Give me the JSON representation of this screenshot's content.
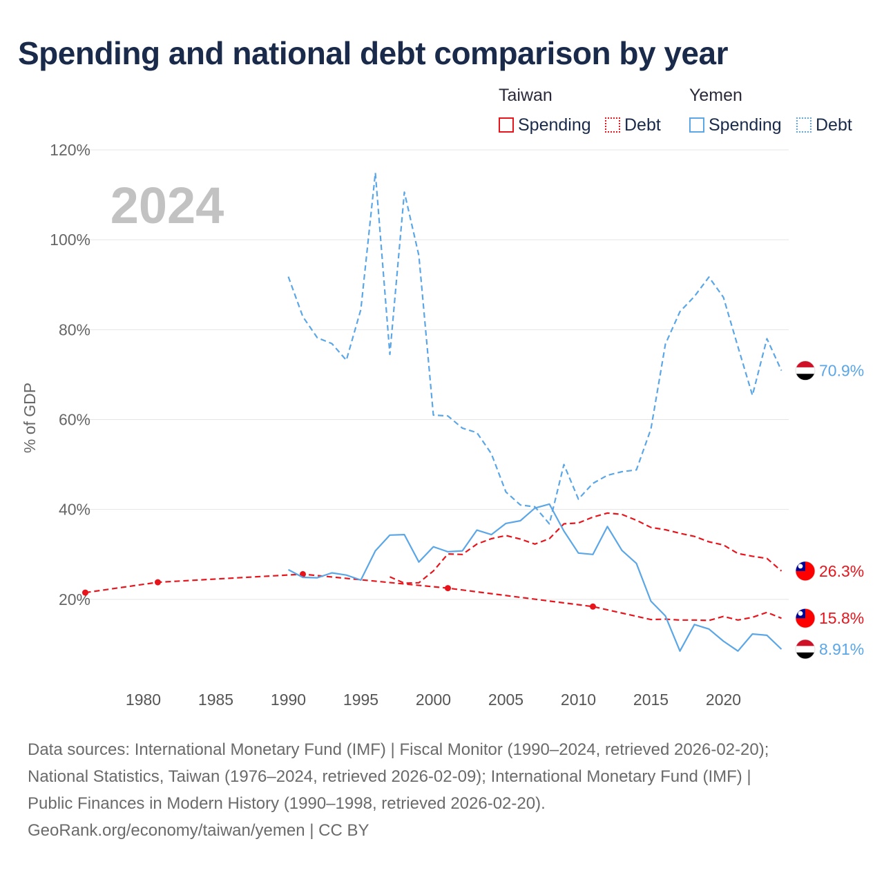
{
  "title": "Spending and national debt comparison by year",
  "legend": {
    "groups": [
      {
        "country": "Taiwan",
        "color": "#e8141c",
        "items": [
          "Spending",
          "Debt"
        ]
      },
      {
        "country": "Yemen",
        "color": "#5aa6e6",
        "items": [
          "Spending",
          "Debt"
        ]
      }
    ]
  },
  "chart_data": {
    "type": "line",
    "title": "Spending and national debt comparison by year",
    "ylabel": "% of GDP",
    "xlabel": "",
    "year_label": "2024",
    "xlim": [
      1975.5,
      2024.5
    ],
    "ylim": [
      2,
      122
    ],
    "x_ticks": [
      1980,
      1985,
      1990,
      1995,
      2000,
      2005,
      2010,
      2015,
      2020
    ],
    "y_ticks": [
      20,
      40,
      60,
      80,
      100,
      120
    ],
    "y_tick_labels": [
      "20%",
      "40%",
      "60%",
      "80%",
      "100%",
      "120%"
    ],
    "series": [
      {
        "name": "Taiwan Debt (National Statistics, interpolated)",
        "country": "Taiwan",
        "metric": "Debt",
        "color": "#e8141c",
        "style": "dashed",
        "x": [
          1976,
          1981,
          1991,
          2001,
          2011,
          2015,
          2016,
          2017,
          2018,
          2019,
          2020,
          2021,
          2022,
          2023,
          2024
        ],
        "y": [
          21.5,
          23.8,
          25.6,
          22.5,
          18.4,
          15.5,
          15.6,
          15.4,
          15.4,
          15.3,
          16.2,
          15.4,
          16.0,
          17.1,
          15.8
        ],
        "markers": [
          1976,
          1981,
          1991,
          2001,
          2011
        ]
      },
      {
        "name": "Taiwan Spending",
        "country": "Taiwan",
        "metric": "Spending",
        "color": "#e8141c",
        "style": "dashed",
        "x": [
          1997,
          1998,
          1999,
          2000,
          2001,
          2002,
          2003,
          2004,
          2005,
          2006,
          2007,
          2008,
          2009,
          2010,
          2011,
          2012,
          2013,
          2014,
          2015,
          2016,
          2017,
          2018,
          2019,
          2020,
          2021,
          2022,
          2023,
          2024
        ],
        "y": [
          25.0,
          23.6,
          23.7,
          26.3,
          30.1,
          30.0,
          32.3,
          33.5,
          34.2,
          33.4,
          32.3,
          33.5,
          36.8,
          37.0,
          38.3,
          39.2,
          38.9,
          37.6,
          36.0,
          35.5,
          34.7,
          34.0,
          32.8,
          32.1,
          30.2,
          29.6,
          29.1,
          26.3
        ]
      },
      {
        "name": "Yemen Debt",
        "country": "Yemen",
        "metric": "Debt",
        "color": "#5aa6e6",
        "style": "dashed",
        "x": [
          1990,
          1991,
          1992,
          1993,
          1994,
          1995,
          1996,
          1997,
          1998,
          1999,
          2000,
          2001,
          2002,
          2003,
          2004,
          2005,
          2006,
          2007,
          2008,
          2009,
          2010,
          2011,
          2012,
          2013,
          2014,
          2015,
          2016,
          2017,
          2018,
          2019,
          2020,
          2021,
          2022,
          2023,
          2024
        ],
        "y": [
          91.8,
          82.9,
          78.2,
          76.9,
          73.2,
          84.5,
          114.9,
          74.5,
          110.6,
          96.5,
          61.0,
          60.8,
          58.1,
          57.1,
          52.4,
          43.9,
          41.0,
          40.6,
          36.8,
          50.0,
          42.3,
          45.8,
          47.6,
          48.4,
          48.8,
          57.9,
          76.8,
          84.0,
          87.4,
          91.7,
          87.2,
          76.2,
          65.4,
          78.0,
          70.9
        ]
      },
      {
        "name": "Yemen Spending",
        "country": "Yemen",
        "metric": "Spending",
        "color": "#5aa6e6",
        "style": "solid",
        "x": [
          1990,
          1991,
          1992,
          1993,
          1994,
          1995,
          1996,
          1997,
          1998,
          1999,
          2000,
          2001,
          2002,
          2003,
          2004,
          2005,
          2006,
          2007,
          2008,
          2009,
          2010,
          2011,
          2012,
          2013,
          2014,
          2015,
          2016,
          2017,
          2018,
          2019,
          2020,
          2021,
          2022,
          2023,
          2024
        ],
        "y": [
          26.6,
          24.9,
          24.8,
          25.9,
          25.4,
          24.3,
          30.8,
          34.3,
          34.4,
          28.3,
          31.7,
          30.6,
          30.8,
          35.4,
          34.4,
          36.9,
          37.5,
          40.3,
          41.2,
          35.2,
          30.3,
          30.0,
          36.2,
          30.9,
          28.0,
          19.6,
          16.3,
          8.5,
          14.4,
          13.4,
          10.7,
          8.5,
          12.3,
          12.0,
          8.91
        ]
      }
    ],
    "end_labels": [
      {
        "country": "Yemen",
        "metric": "Debt",
        "value": 70.9,
        "text": "70.9%",
        "color": "#5aa6e6",
        "flag": "yemen-flag"
      },
      {
        "country": "Taiwan",
        "metric": "Spending",
        "value": 26.3,
        "text": "26.3%",
        "color": "#e8141c",
        "flag": "taiwan-flag"
      },
      {
        "country": "Taiwan",
        "metric": "Debt",
        "value": 15.8,
        "text": "15.8%",
        "color": "#e8141c",
        "flag": "taiwan-flag"
      },
      {
        "country": "Yemen",
        "metric": "Spending",
        "value": 8.91,
        "text": "8.91%",
        "color": "#5aa6e6",
        "flag": "yemen-flag"
      }
    ]
  },
  "footer": {
    "lines": [
      "Data sources: International Monetary Fund (IMF) | Fiscal Monitor (1990–2024, retrieved 2026-02-20);",
      "National Statistics, Taiwan (1976–2024, retrieved 2026-02-09); International Monetary Fund (IMF) |",
      "Public Finances in Modern History (1990–1998, retrieved 2026-02-20).",
      "GeoRank.org/economy/taiwan/yemen | CC BY"
    ]
  }
}
